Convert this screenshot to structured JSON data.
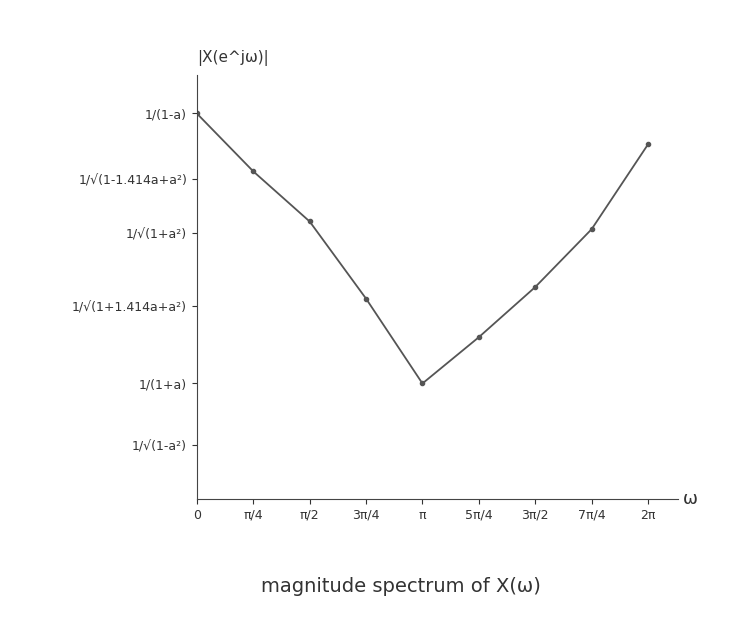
{
  "chart_data": {
    "type": "line",
    "title": "magnitude spectrum of X(ω)",
    "y_label": "|X(e^jω)|",
    "x_label": "ω",
    "x": [
      0,
      0.7854,
      1.5708,
      2.3562,
      3.1416,
      3.927,
      4.7124,
      5.4978,
      6.2832
    ],
    "values": [
      1.0,
      0.85,
      0.72,
      0.52,
      0.3,
      0.42,
      0.55,
      0.7,
      0.92
    ],
    "color": "#555555",
    "marker": "o",
    "line_style": "solid",
    "xlim": [
      0,
      6.7
    ],
    "ylim": [
      0,
      1.1
    ],
    "xticks": [
      {
        "value": 0,
        "label": "0"
      },
      {
        "value": 0.7854,
        "label": "π/4"
      },
      {
        "value": 1.5708,
        "label": "π/2"
      },
      {
        "value": 2.3562,
        "label": "3π/4"
      },
      {
        "value": 3.1416,
        "label": "π"
      },
      {
        "value": 3.927,
        "label": "5π/4"
      },
      {
        "value": 4.7124,
        "label": "3π/2"
      },
      {
        "value": 5.4978,
        "label": "7π/4"
      },
      {
        "value": 6.2832,
        "label": "2π"
      }
    ],
    "yticks": [
      {
        "value": 1.0,
        "label": "1/(1-a)"
      },
      {
        "value": 0.83,
        "label": "1/√(1-1.414a+a²)"
      },
      {
        "value": 0.69,
        "label": "1/√(1+a²)"
      },
      {
        "value": 0.5,
        "label": "1/√(1+1.414a+a²)"
      },
      {
        "value": 0.3,
        "label": "1/(1+a)"
      },
      {
        "value": 0.14,
        "label": "1/√(1-a²)"
      }
    ],
    "grid": false
  }
}
